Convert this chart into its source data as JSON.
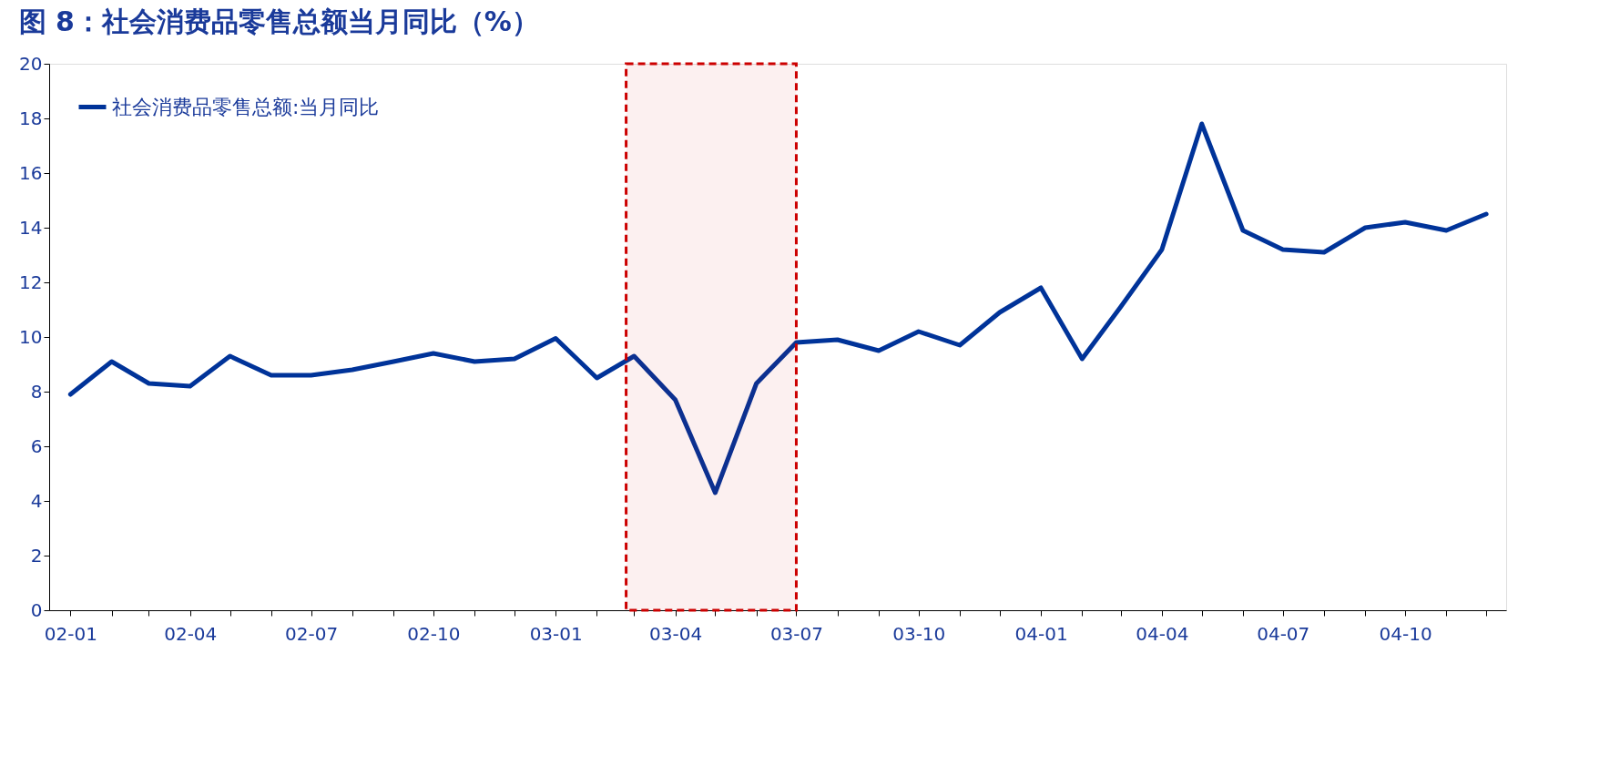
{
  "chart_data": {
    "type": "line",
    "title": "图 8：社会消费品零售总额当月同比（%）",
    "x": [
      "2002-01",
      "2002-02",
      "2002-03",
      "2002-04",
      "2002-05",
      "2002-06",
      "2002-07",
      "2002-08",
      "2002-09",
      "2002-10",
      "2002-11",
      "2002-12",
      "2003-01",
      "2003-02",
      "2003-03",
      "2003-04",
      "2003-05",
      "2003-06",
      "2003-07",
      "2003-08",
      "2003-09",
      "2003-10",
      "2003-11",
      "2003-12",
      "2004-01",
      "2004-02",
      "2004-03",
      "2004-04",
      "2004-05",
      "2004-06",
      "2004-07",
      "2004-08",
      "2004-09",
      "2004-10",
      "2004-11",
      "2004-12"
    ],
    "series": [
      {
        "name": "社会消费品零售总额:当月同比",
        "color": "#003399",
        "values": [
          7.9,
          9.1,
          8.3,
          8.2,
          9.3,
          8.6,
          8.6,
          8.8,
          9.1,
          9.4,
          9.1,
          9.2,
          9.95,
          8.5,
          9.3,
          7.7,
          4.3,
          8.3,
          9.8,
          9.9,
          9.5,
          10.2,
          9.7,
          10.9,
          11.8,
          9.2,
          11.1,
          13.2,
          17.8,
          13.9,
          13.2,
          13.1,
          14.0,
          14.2,
          13.9,
          14.5
        ]
      }
    ],
    "xlim": [
      "2001-12-16",
      "2004-12-16"
    ],
    "xticks": [
      {
        "value": "2002-01",
        "label": "02-01"
      },
      {
        "value": "2002-02",
        "label": null
      },
      {
        "value": "2002-03",
        "label": null
      },
      {
        "value": "2002-04",
        "label": "02-04"
      },
      {
        "value": "2002-05",
        "label": null
      },
      {
        "value": "2002-06",
        "label": null
      },
      {
        "value": "2002-07",
        "label": "02-07"
      },
      {
        "value": "2002-08",
        "label": null
      },
      {
        "value": "2002-09",
        "label": null
      },
      {
        "value": "2002-10",
        "label": "02-10"
      },
      {
        "value": "2002-11",
        "label": null
      },
      {
        "value": "2002-12",
        "label": null
      },
      {
        "value": "2003-01",
        "label": "03-01"
      },
      {
        "value": "2003-02",
        "label": null
      },
      {
        "value": "2003-03",
        "label": null
      },
      {
        "value": "2003-04",
        "label": "03-04"
      },
      {
        "value": "2003-05",
        "label": null
      },
      {
        "value": "2003-06",
        "label": null
      },
      {
        "value": "2003-07",
        "label": "03-07"
      },
      {
        "value": "2003-08",
        "label": null
      },
      {
        "value": "2003-09",
        "label": null
      },
      {
        "value": "2003-10",
        "label": "03-10"
      },
      {
        "value": "2003-11",
        "label": null
      },
      {
        "value": "2003-12",
        "label": null
      },
      {
        "value": "2004-01",
        "label": "04-01"
      },
      {
        "value": "2004-02",
        "label": null
      },
      {
        "value": "2004-03",
        "label": null
      },
      {
        "value": "2004-04",
        "label": "04-04"
      },
      {
        "value": "2004-05",
        "label": null
      },
      {
        "value": "2004-06",
        "label": null
      },
      {
        "value": "2004-07",
        "label": "04-07"
      },
      {
        "value": "2004-08",
        "label": null
      },
      {
        "value": "2004-09",
        "label": null
      },
      {
        "value": "2004-10",
        "label": "04-10"
      },
      {
        "value": "2004-11",
        "label": null
      },
      {
        "value": "2004-12",
        "label": null
      }
    ],
    "ylim": [
      0,
      20
    ],
    "yticks": [
      0,
      2,
      4,
      6,
      8,
      10,
      12,
      14,
      16,
      18,
      20
    ],
    "bands": [
      {
        "axis": "x",
        "from": "2003-02-23",
        "to": "2003-07-01",
        "color": "#cc0000"
      }
    ],
    "grid": false,
    "legend": "top left",
    "line_style": "solid",
    "marker": "none"
  }
}
